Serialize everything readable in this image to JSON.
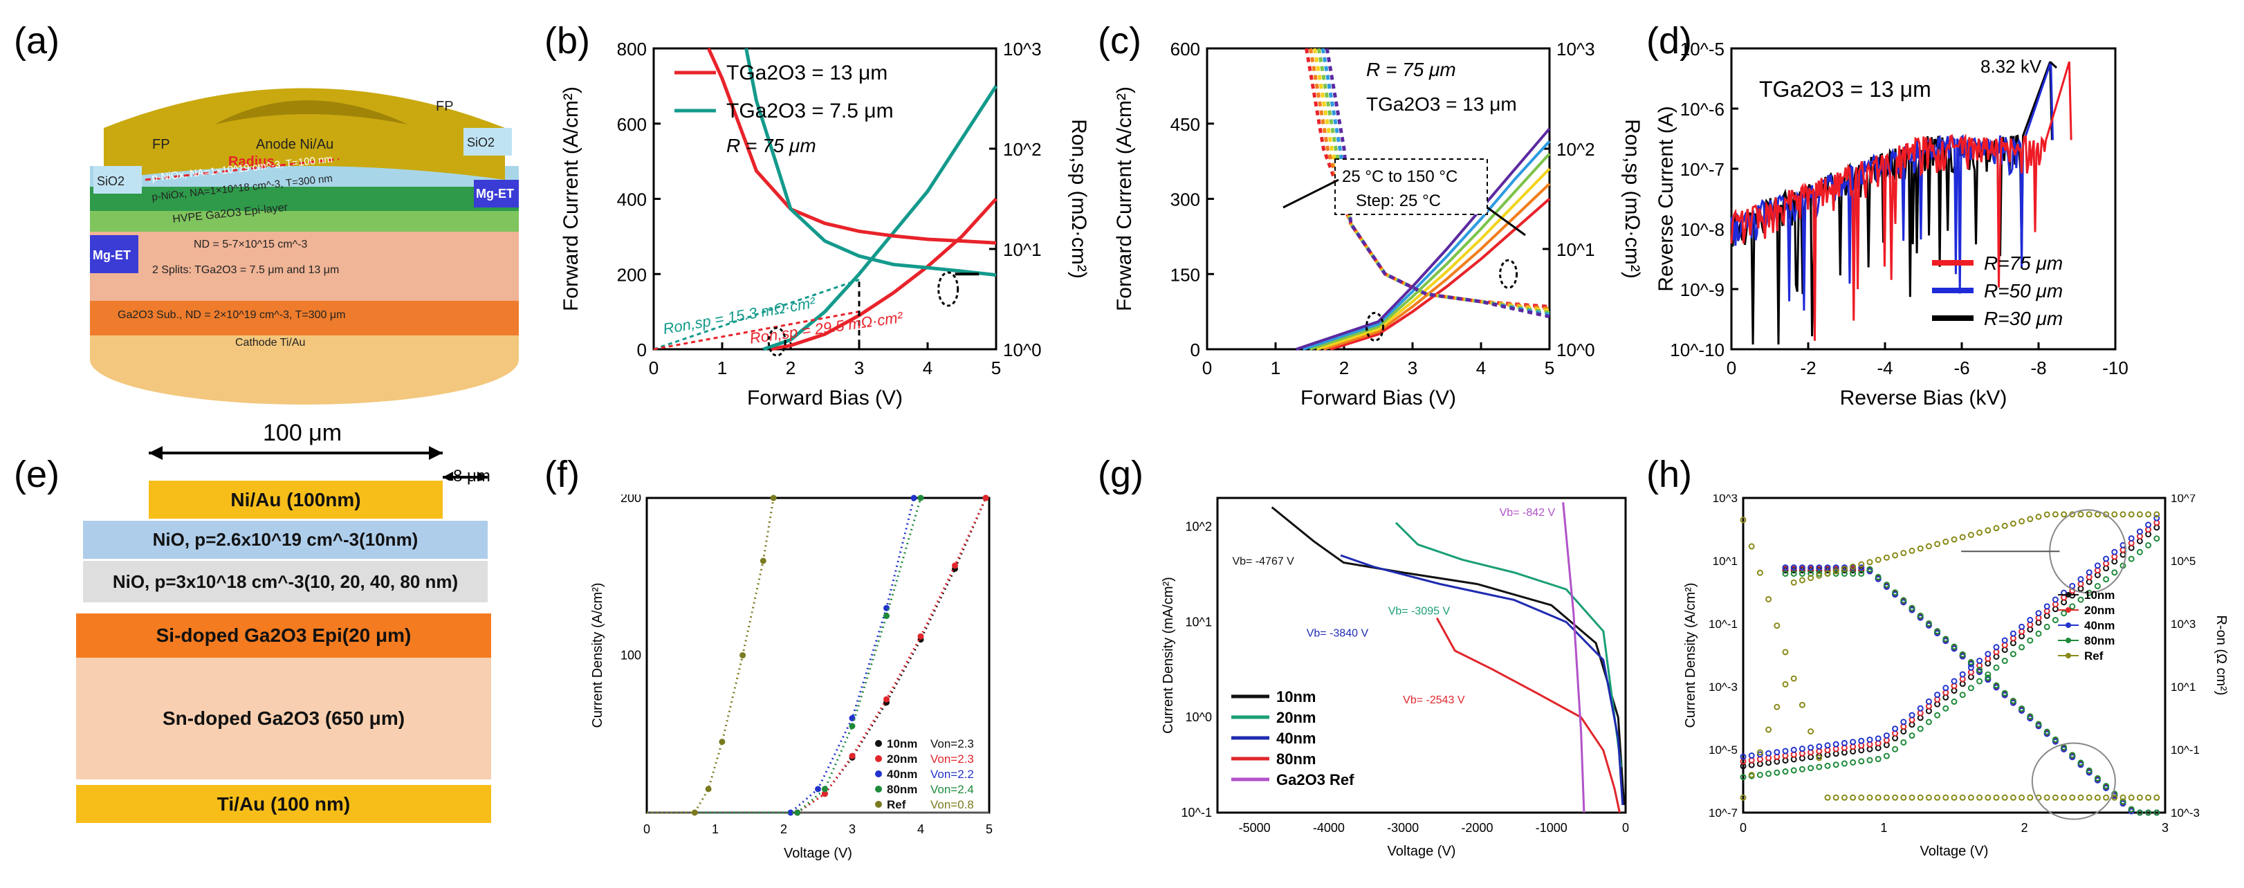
{
  "panels": {
    "a": "(a)",
    "b": "(b)",
    "c": "(c)",
    "d": "(d)",
    "e": "(e)",
    "f": "(f)",
    "g": "(g)",
    "h": "(h)"
  },
  "device_a": {
    "labels": [
      "FP",
      "FP",
      "SiO2",
      "SiO2",
      "Anode Ni/Au",
      "Radius",
      "Mg-ET",
      "Mg-ET",
      "p-NiOx, NA=1×10^19 cm^-3, T=100 nm",
      "p-NiOx, NA=1×10^18 cm^-3, T=300 nm",
      "HVPE Ga2O3 Epi-layer",
      "ND = 5-7×10^15 cm^-3",
      "2 Splits: TGa2O3 = 7.5 μm and 13 μm",
      "Ga2O3 Sub., ND = 2×10^19 cm^-3, T=300 μm",
      "Cathode Ti/Au"
    ]
  },
  "device_e": {
    "width_label": "100 μm",
    "gap_label": "8 μm",
    "layers": [
      "Ni/Au (100nm)",
      "NiO, p=2.6x10^19 cm^-3(10nm)",
      "NiO, p=3x10^18 cm^-3(10, 20, 40, 80 nm)",
      "Si-doped Ga2O3 Epi(20 μm)",
      "Sn-doped Ga2O3 (650 μm)",
      "Ti/Au (100 nm)"
    ]
  },
  "chart_data": [
    {
      "id": "b",
      "type": "line",
      "xlabel": "Forward Bias (V)",
      "ylabel": "Forward Current (A/cm²)",
      "y2label": "Ron,sp (mΩ·cm²)",
      "xlim": [
        0,
        5
      ],
      "ylim": [
        0,
        800
      ],
      "y2lim": [
        1,
        1000
      ],
      "y2scale": "log",
      "xticks": [
        "0",
        "1",
        "2",
        "3",
        "4",
        "5"
      ],
      "yticks": [
        "0",
        "200",
        "400",
        "600",
        "800"
      ],
      "y2ticks": [
        "10^0",
        "10^1",
        "10^2",
        "10^3"
      ],
      "legend": [
        "TGa2O3 = 13 μm",
        "TGa2O3 = 7.5 μm",
        "R = 75 μm"
      ],
      "annotations": [
        "Ron,sp = 15.3 mΩ·cm²",
        "Ron,sp = 29.5 mΩ·cm²"
      ],
      "series": [
        {
          "name": "TGa2O3 = 13 μm",
          "color": "#e8232a",
          "axis": "left",
          "x": [
            1.7,
            2,
            2.5,
            3,
            3.5,
            4,
            4.5,
            5
          ],
          "y": [
            0,
            10,
            40,
            90,
            150,
            220,
            300,
            400
          ]
        },
        {
          "name": "TGa2O3 = 7.5 μm",
          "color": "#139a8c",
          "axis": "left",
          "x": [
            1.6,
            2,
            2.5,
            3,
            3.5,
            4,
            4.5,
            5
          ],
          "y": [
            0,
            25,
            100,
            200,
            310,
            420,
            560,
            700
          ]
        },
        {
          "name": "Ron 13 μm",
          "color": "#e8232a",
          "axis": "right",
          "x": [
            0.8,
            1,
            1.5,
            2,
            2.5,
            3,
            3.5,
            4,
            4.5,
            5
          ],
          "y": [
            1000,
            500,
            60,
            25,
            18,
            15,
            13.5,
            12.5,
            12,
            11.5
          ]
        },
        {
          "name": "Ron 7.5 μm",
          "color": "#139a8c",
          "axis": "right",
          "x": [
            1.35,
            1.5,
            2,
            2.5,
            3,
            3.5,
            4,
            4.5,
            5
          ],
          "y": [
            1000,
            300,
            25,
            12,
            8.5,
            7,
            6.5,
            6,
            5.5
          ]
        }
      ]
    },
    {
      "id": "c",
      "type": "line",
      "xlabel": "Forward Bias (V)",
      "ylabel": "Forward Current (A/cm²)",
      "y2label": "Ron,sp (mΩ·cm²)",
      "xlim": [
        0,
        5
      ],
      "ylim": [
        0,
        600
      ],
      "y2lim": [
        1,
        1000
      ],
      "y2scale": "log",
      "xticks": [
        "0",
        "1",
        "2",
        "3",
        "4",
        "5"
      ],
      "yticks": [
        "0",
        "150",
        "300",
        "450",
        "600"
      ],
      "y2ticks": [
        "10^0",
        "10^1",
        "10^2",
        "10^3"
      ],
      "annotations": [
        "R = 75 μm",
        "TGa2O3 = 13 μm",
        "25 °C to 150 °C",
        "Step: 25 °C"
      ],
      "series": [
        {
          "name": "25 °C",
          "color": "#e8232a",
          "x": [
            1.8,
            2.5,
            3,
            3.5,
            4,
            4.5,
            5
          ],
          "y": [
            0,
            30,
            75,
            125,
            180,
            240,
            300
          ]
        },
        {
          "name": "50 °C",
          "color": "#f07f1e",
          "x": [
            1.7,
            2.5,
            3,
            3.5,
            4,
            4.5,
            5
          ],
          "y": [
            0,
            35,
            85,
            140,
            200,
            265,
            330
          ]
        },
        {
          "name": "75 °C",
          "color": "#f2d41c",
          "x": [
            1.6,
            2.5,
            3,
            3.5,
            4,
            4.5,
            5
          ],
          "y": [
            0,
            40,
            95,
            155,
            220,
            290,
            360
          ]
        },
        {
          "name": "100 °C",
          "color": "#7dc34b",
          "x": [
            1.5,
            2.5,
            3,
            3.5,
            4,
            4.5,
            5
          ],
          "y": [
            0,
            45,
            105,
            170,
            240,
            315,
            390
          ]
        },
        {
          "name": "125 °C",
          "color": "#2e9be0",
          "x": [
            1.4,
            2.5,
            3,
            3.5,
            4,
            4.5,
            5
          ],
          "y": [
            0,
            50,
            115,
            185,
            260,
            340,
            415
          ]
        },
        {
          "name": "150 °C",
          "color": "#5b2aa0",
          "x": [
            1.3,
            2.5,
            3,
            3.5,
            4,
            4.5,
            5
          ],
          "y": [
            0,
            55,
            125,
            200,
            280,
            360,
            440
          ]
        }
      ]
    },
    {
      "id": "d",
      "type": "line",
      "xlabel": "Reverse Bias (kV)",
      "ylabel": "Reverse Current (A)",
      "xlim": [
        0,
        -10
      ],
      "ylim": [
        1e-10,
        1e-05
      ],
      "yscale": "log",
      "xticks": [
        "0",
        "-2",
        "-4",
        "-6",
        "-8",
        "-10"
      ],
      "yticks": [
        "10^-10",
        "10^-9",
        "10^-8",
        "10^-7",
        "10^-6",
        "10^-5"
      ],
      "annotations": [
        "8.32 kV",
        "TGa2O3 = 13 μm"
      ],
      "series": [
        {
          "name": "R=75 μm",
          "color": "#ee1c25"
        },
        {
          "name": "R=50 μm",
          "color": "#1f2bd8"
        },
        {
          "name": "R=30 μm",
          "color": "#000000"
        }
      ]
    },
    {
      "id": "f",
      "type": "line",
      "xlabel": "Voltage (V)",
      "ylabel": "Current Density (A/cm²)",
      "xlim": [
        0,
        5
      ],
      "ylim": [
        0,
        200
      ],
      "xticks": [
        "0",
        "1",
        "2",
        "3",
        "4",
        "5"
      ],
      "yticks": [
        "100",
        "200"
      ],
      "series": [
        {
          "name": "10nm",
          "von": "Von=2.3",
          "color": "#111111",
          "x": [
            2.2,
            2.6,
            3,
            3.5,
            4,
            4.5,
            4.95
          ],
          "y": [
            0,
            12,
            35,
            70,
            110,
            155,
            200
          ]
        },
        {
          "name": "20nm",
          "von": "Von=2.3",
          "color": "#e0262c",
          "x": [
            2.2,
            2.6,
            3,
            3.5,
            4,
            4.5,
            4.95
          ],
          "y": [
            0,
            12,
            36,
            72,
            112,
            157,
            200
          ]
        },
        {
          "name": "40nm",
          "von": "Von=2.2",
          "color": "#2233cc",
          "x": [
            2.1,
            2.5,
            3,
            3.5,
            3.9
          ],
          "y": [
            0,
            15,
            60,
            130,
            200
          ]
        },
        {
          "name": "80nm",
          "von": "Von=2.4",
          "color": "#1f8a3a",
          "x": [
            2.2,
            2.6,
            3,
            3.5,
            4
          ],
          "y": [
            0,
            15,
            55,
            125,
            200
          ]
        },
        {
          "name": "Ref",
          "von": "Von=0.8",
          "color": "#7a7a20",
          "x": [
            0.7,
            0.9,
            1.1,
            1.4,
            1.7,
            1.85
          ],
          "y": [
            0,
            15,
            45,
            100,
            160,
            200
          ]
        }
      ]
    },
    {
      "id": "g",
      "type": "line",
      "xlabel": "Voltage (V)",
      "ylabel": "Current Density (mA/cm²)",
      "xlim": [
        -5500,
        0
      ],
      "ylim": [
        0.1,
        200
      ],
      "yscale": "log",
      "xticks": [
        "-5000",
        "-4000",
        "-3000",
        "-2000",
        "-1000",
        "0"
      ],
      "yticks": [
        "10^-1",
        "10^0",
        "10^1",
        "10^2"
      ],
      "annotations": [
        "Vb= -4767 V",
        "Vb= -3840 V",
        "Vb= -3095 V",
        "Vb= -2543 V",
        "Vb= -842 V"
      ],
      "series": [
        {
          "name": "10nm",
          "color": "#111111"
        },
        {
          "name": "20nm",
          "color": "#1a9e76"
        },
        {
          "name": "40nm",
          "color": "#1f2bb0"
        },
        {
          "name": "80nm",
          "color": "#e0262c"
        },
        {
          "name": "Ga2O3 Ref",
          "color": "#b152c9"
        }
      ]
    },
    {
      "id": "h",
      "type": "line",
      "xlabel": "Voltage (V)",
      "ylabel": "Current Density (A/cm²)",
      "y2label": "R-on (Ω cm²)",
      "xlim": [
        0,
        3
      ],
      "ylim": [
        1e-07,
        1000.0
      ],
      "yscale": "log",
      "y2lim": [
        0.001,
        10000000.0
      ],
      "y2scale": "log",
      "xticks": [
        "0",
        "1",
        "2",
        "3"
      ],
      "yticks": [
        "10^-7",
        "10^-5",
        "10^-3",
        "10^-1",
        "10^1",
        "10^3"
      ],
      "y2ticks": [
        "10^-3",
        "10^-1",
        "10^1",
        "10^3",
        "10^5",
        "10^7"
      ],
      "series": [
        {
          "name": "10nm",
          "color": "#111111"
        },
        {
          "name": "20nm",
          "color": "#e0262c"
        },
        {
          "name": "40nm",
          "color": "#2233cc"
        },
        {
          "name": "80nm",
          "color": "#1f8a3a"
        },
        {
          "name": "Ref",
          "color": "#8a8a1a"
        }
      ]
    }
  ]
}
